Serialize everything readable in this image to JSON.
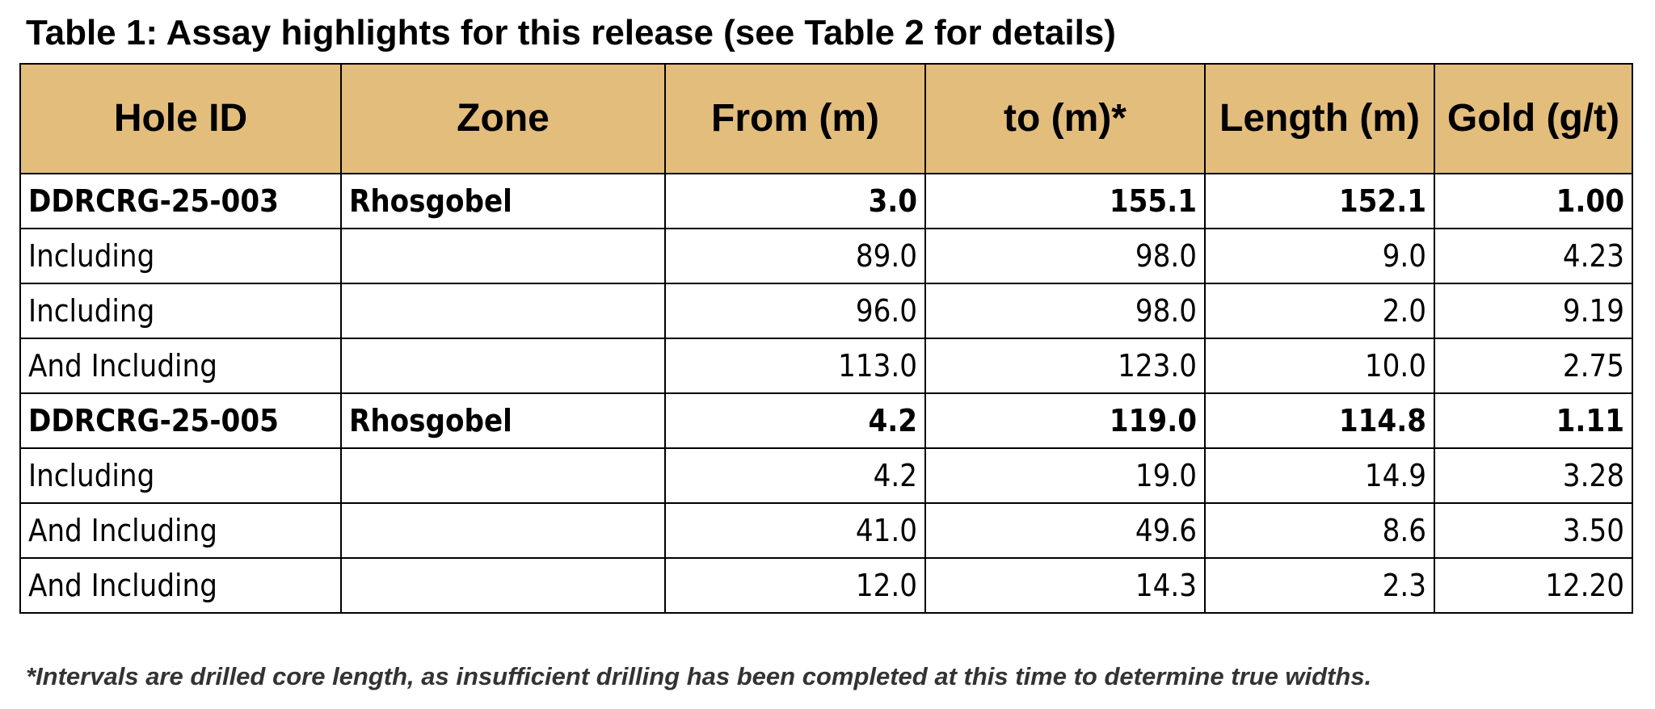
{
  "title": "Table 1: Assay highlights for this release (see Table 2 for details)",
  "table": {
    "header": [
      "Hole ID",
      "Zone",
      "From (m)",
      "to (m)*",
      "Length (m)",
      "Gold (g/t)"
    ],
    "rows": [
      {
        "hole_id": "DDRCRG-25-003",
        "zone": "Rhosgobel",
        "from": "3.0",
        "to": "155.1",
        "length": "152.1",
        "gold": "1.00"
      },
      {
        "hole_id": "Including",
        "from": "89.0",
        "to": "98.0",
        "length": "9.0",
        "gold": "4.23"
      },
      {
        "hole_id": "Including",
        "from": "96.0",
        "to": "98.0",
        "length": "2.0",
        "gold": "9.19"
      },
      {
        "hole_id": "And Including",
        "from": "113.0",
        "to": "123.0",
        "length": "10.0",
        "gold": "2.75"
      },
      {
        "hole_id": "DDRCRG-25-005",
        "zone": "Rhosgobel",
        "from": "4.2",
        "to": "119.0",
        "length": "114.8",
        "gold": "1.11"
      },
      {
        "hole_id": "Including",
        "from": "4.2",
        "to": "19.0",
        "length": "14.9",
        "gold": "3.28"
      },
      {
        "hole_id": "And Including",
        "from": "41.0",
        "to": "49.6",
        "length": "8.6",
        "gold": "3.50"
      },
      {
        "hole_id": "And Including",
        "from": "12.0",
        "to": "14.3",
        "length": "2.3",
        "gold": "12.20"
      }
    ]
  },
  "footnote": "*Intervals are drilled core length, as insufficient drilling has been completed at this time to determine true widths."
}
